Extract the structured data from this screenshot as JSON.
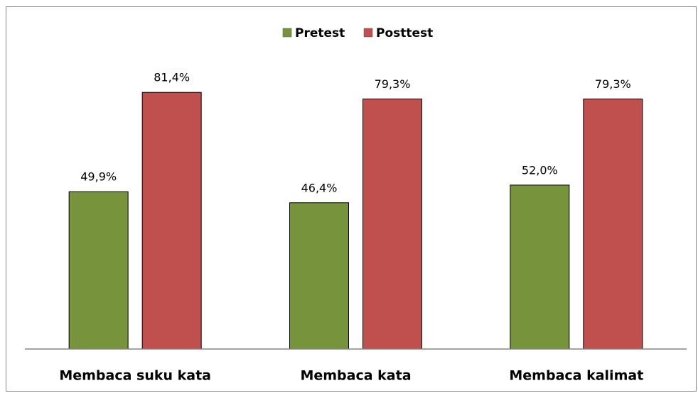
{
  "chart_data": {
    "type": "bar",
    "categories": [
      "Membaca suku kata",
      "Membaca kata",
      "Membaca kalimat"
    ],
    "series": [
      {
        "name": "Pretest",
        "color": "#77933c",
        "values": [
          49.9,
          46.4,
          52.0
        ],
        "value_labels": [
          "49,9%",
          "46,4%",
          "52,0%"
        ]
      },
      {
        "name": "Posttest",
        "color": "#c0504d",
        "values": [
          81.4,
          79.3,
          79.3
        ],
        "value_labels": [
          "81,4%",
          "79,3%",
          "79,3%"
        ]
      }
    ],
    "ylim": [
      0,
      90
    ],
    "legend": "top"
  }
}
